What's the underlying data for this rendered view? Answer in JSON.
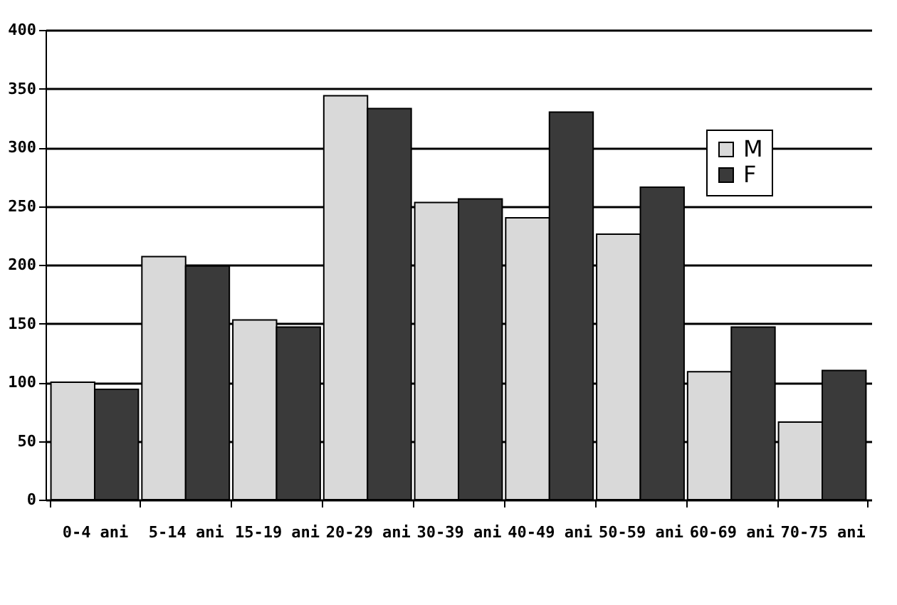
{
  "chart_data": {
    "type": "bar",
    "categories": [
      "0-4 ani",
      "5-14 ani",
      "15-19 ani",
      "20-29 ani",
      "30-39 ani",
      "40-49 ani",
      "50-59 ani",
      "60-69 ani",
      "70-75 ani"
    ],
    "series": [
      {
        "name": "M",
        "color": "#d9d9d9",
        "values": [
          100,
          207,
          153,
          344,
          253,
          240,
          226,
          109,
          66
        ]
      },
      {
        "name": "F",
        "color": "#3a3a3a",
        "values": [
          94,
          199,
          147,
          333,
          256,
          330,
          266,
          147,
          110
        ]
      }
    ],
    "ylim": [
      0,
      400
    ],
    "yticks": [
      0,
      50,
      100,
      150,
      200,
      250,
      300,
      350,
      400
    ],
    "grid": "y",
    "legend": "top right"
  }
}
